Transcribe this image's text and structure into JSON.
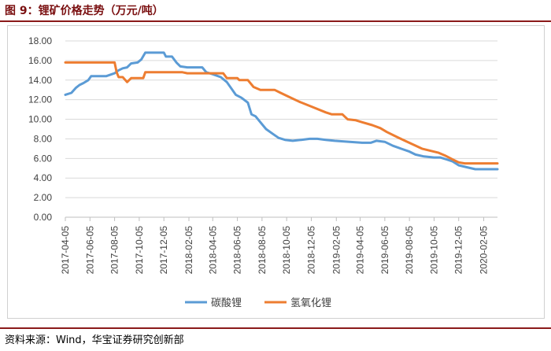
{
  "header": {
    "title": "图 9：锂矿价格走势（万元/吨）"
  },
  "footer": {
    "source": "资料来源：Wind，华宝证券研究创新部"
  },
  "chart_data": {
    "type": "line",
    "title": "",
    "xlabel": "",
    "ylabel": "",
    "ylim": [
      0,
      18
    ],
    "yticks": [
      "0.00",
      "2.00",
      "4.00",
      "6.00",
      "8.00",
      "10.00",
      "12.00",
      "14.00",
      "16.00",
      "18.00"
    ],
    "xticks": [
      "2017-04-05",
      "2017-06-05",
      "2017-08-05",
      "2017-10-05",
      "2017-12-05",
      "2018-02-05",
      "2018-04-05",
      "2018-06-05",
      "2018-08-05",
      "2018-10-05",
      "2018-12-05",
      "2019-02-05",
      "2019-04-05",
      "2019-06-05",
      "2019-08-05",
      "2019-10-05",
      "2019-12-05",
      "2020-02-05"
    ],
    "x_range": [
      "2017-04-05",
      "2020-03-10"
    ],
    "grid": "horizontal",
    "legend": "bottom",
    "series": [
      {
        "name": "碳酸锂",
        "color": "#5b9bd5",
        "points": [
          [
            "2017-04-05",
            12.5
          ],
          [
            "2017-04-20",
            12.7
          ],
          [
            "2017-05-01",
            13.2
          ],
          [
            "2017-05-10",
            13.5
          ],
          [
            "2017-05-20",
            13.7
          ],
          [
            "2017-06-01",
            14.0
          ],
          [
            "2017-06-08",
            14.4
          ],
          [
            "2017-06-20",
            14.4
          ],
          [
            "2017-07-15",
            14.4
          ],
          [
            "2017-08-05",
            14.7
          ],
          [
            "2017-08-15",
            15.0
          ],
          [
            "2017-08-25",
            15.2
          ],
          [
            "2017-09-05",
            15.3
          ],
          [
            "2017-09-15",
            15.7
          ],
          [
            "2017-10-01",
            15.8
          ],
          [
            "2017-10-10",
            16.1
          ],
          [
            "2017-10-20",
            16.8
          ],
          [
            "2017-11-10",
            16.8
          ],
          [
            "2017-12-05",
            16.8
          ],
          [
            "2017-12-10",
            16.4
          ],
          [
            "2017-12-25",
            16.4
          ],
          [
            "2018-01-05",
            15.8
          ],
          [
            "2018-01-15",
            15.4
          ],
          [
            "2018-02-01",
            15.3
          ],
          [
            "2018-03-10",
            15.3
          ],
          [
            "2018-03-20",
            14.8
          ],
          [
            "2018-04-05",
            14.6
          ],
          [
            "2018-04-25",
            14.3
          ],
          [
            "2018-05-10",
            13.8
          ],
          [
            "2018-05-20",
            13.2
          ],
          [
            "2018-06-01",
            12.5
          ],
          [
            "2018-06-15",
            12.2
          ],
          [
            "2018-07-01",
            11.7
          ],
          [
            "2018-07-10",
            10.5
          ],
          [
            "2018-07-20",
            10.3
          ],
          [
            "2018-08-01",
            9.7
          ],
          [
            "2018-08-15",
            9.0
          ],
          [
            "2018-09-01",
            8.5
          ],
          [
            "2018-09-15",
            8.1
          ],
          [
            "2018-10-01",
            7.9
          ],
          [
            "2018-10-20",
            7.8
          ],
          [
            "2018-11-10",
            7.9
          ],
          [
            "2018-12-01",
            8.0
          ],
          [
            "2018-12-20",
            8.0
          ],
          [
            "2019-01-10",
            7.9
          ],
          [
            "2019-02-01",
            7.8
          ],
          [
            "2019-03-10",
            7.7
          ],
          [
            "2019-04-10",
            7.6
          ],
          [
            "2019-05-01",
            7.6
          ],
          [
            "2019-05-15",
            7.8
          ],
          [
            "2019-06-05",
            7.7
          ],
          [
            "2019-06-25",
            7.3
          ],
          [
            "2019-07-15",
            7.0
          ],
          [
            "2019-08-05",
            6.7
          ],
          [
            "2019-08-20",
            6.4
          ],
          [
            "2019-09-10",
            6.2
          ],
          [
            "2019-10-05",
            6.1
          ],
          [
            "2019-10-20",
            6.1
          ],
          [
            "2019-11-05",
            5.9
          ],
          [
            "2019-11-20",
            5.7
          ],
          [
            "2019-12-05",
            5.3
          ],
          [
            "2019-12-25",
            5.1
          ],
          [
            "2020-01-15",
            4.9
          ],
          [
            "2020-02-05",
            4.9
          ],
          [
            "2020-03-10",
            4.9
          ]
        ]
      },
      {
        "name": "氢氧化锂",
        "color": "#ed7d31",
        "points": [
          [
            "2017-04-05",
            15.8
          ],
          [
            "2017-06-05",
            15.8
          ],
          [
            "2017-08-05",
            15.8
          ],
          [
            "2017-08-10",
            14.8
          ],
          [
            "2017-08-15",
            14.3
          ],
          [
            "2017-08-25",
            14.3
          ],
          [
            "2017-09-05",
            13.8
          ],
          [
            "2017-09-15",
            14.2
          ],
          [
            "2017-10-01",
            14.2
          ],
          [
            "2017-10-15",
            14.2
          ],
          [
            "2017-10-20",
            14.8
          ],
          [
            "2017-12-05",
            14.8
          ],
          [
            "2018-01-20",
            14.8
          ],
          [
            "2018-02-01",
            14.7
          ],
          [
            "2018-04-05",
            14.7
          ],
          [
            "2018-05-01",
            14.7
          ],
          [
            "2018-05-10",
            14.2
          ],
          [
            "2018-06-05",
            14.2
          ],
          [
            "2018-06-10",
            14.0
          ],
          [
            "2018-07-01",
            14.0
          ],
          [
            "2018-07-15",
            13.3
          ],
          [
            "2018-08-01",
            13.0
          ],
          [
            "2018-09-05",
            13.0
          ],
          [
            "2018-09-20",
            12.7
          ],
          [
            "2018-10-10",
            12.3
          ],
          [
            "2018-11-05",
            11.8
          ],
          [
            "2018-12-05",
            11.3
          ],
          [
            "2019-01-10",
            10.7
          ],
          [
            "2019-01-25",
            10.5
          ],
          [
            "2019-02-20",
            10.5
          ],
          [
            "2019-03-05",
            10.0
          ],
          [
            "2019-03-25",
            9.9
          ],
          [
            "2019-04-10",
            9.7
          ],
          [
            "2019-05-05",
            9.4
          ],
          [
            "2019-05-25",
            9.1
          ],
          [
            "2019-06-10",
            8.7
          ],
          [
            "2019-07-05",
            8.2
          ],
          [
            "2019-07-25",
            7.8
          ],
          [
            "2019-08-15",
            7.4
          ],
          [
            "2019-09-05",
            7.0
          ],
          [
            "2019-09-25",
            6.8
          ],
          [
            "2019-10-15",
            6.6
          ],
          [
            "2019-11-01",
            6.3
          ],
          [
            "2019-11-20",
            5.9
          ],
          [
            "2019-12-05",
            5.6
          ],
          [
            "2019-12-20",
            5.5
          ],
          [
            "2020-02-05",
            5.5
          ],
          [
            "2020-03-10",
            5.5
          ]
        ]
      }
    ]
  }
}
